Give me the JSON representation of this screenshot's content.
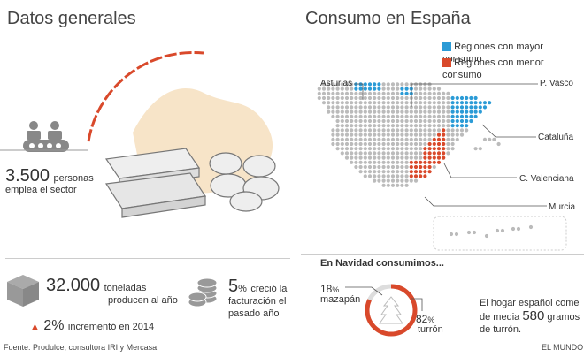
{
  "left_title": "Datos generales",
  "right_title": "Consumo en España",
  "workers": {
    "number": "3.500",
    "unit": "personas",
    "desc": "emplea el sector"
  },
  "tons": {
    "number": "32.000",
    "unit": "toneladas",
    "desc": "producen al año"
  },
  "increment": {
    "number": "2%",
    "desc": "incrementó en 2014"
  },
  "growth": {
    "number": "5",
    "unit_pct": "%",
    "desc1": "creció la",
    "desc2": "facturación el",
    "desc3": "pasado año"
  },
  "legend": {
    "more": "Regiones con mayor consumo",
    "less": "Regiones con menor consumo"
  },
  "regions": {
    "asturias": "Asturias",
    "pvasco": "P. Vasco",
    "cataluna": "Cataluña",
    "cvalenciana": "C. Valenciana",
    "murcia": "Murcia"
  },
  "christmas": {
    "title": "En Navidad consumimos...",
    "mazapan_pct": "18",
    "mazapan_pct_sign": "%",
    "mazapan_label": "mazapán",
    "turron_pct": "82",
    "turron_pct_sign": "%",
    "turron_label": "turrón",
    "turron_share": 0.82,
    "home_line1": "El hogar español come",
    "home_line2a": "de media",
    "home_big": "580",
    "home_line2b": "gramos",
    "home_line3": "de turrón."
  },
  "source": "Fuente: Produlce, consultora IRI y Mercasa",
  "brand": "EL MUNDO",
  "colors": {
    "blue": "#2b9bd6",
    "red": "#d9492b",
    "grey": "#aaaaaa",
    "darkgrey": "#888888"
  }
}
